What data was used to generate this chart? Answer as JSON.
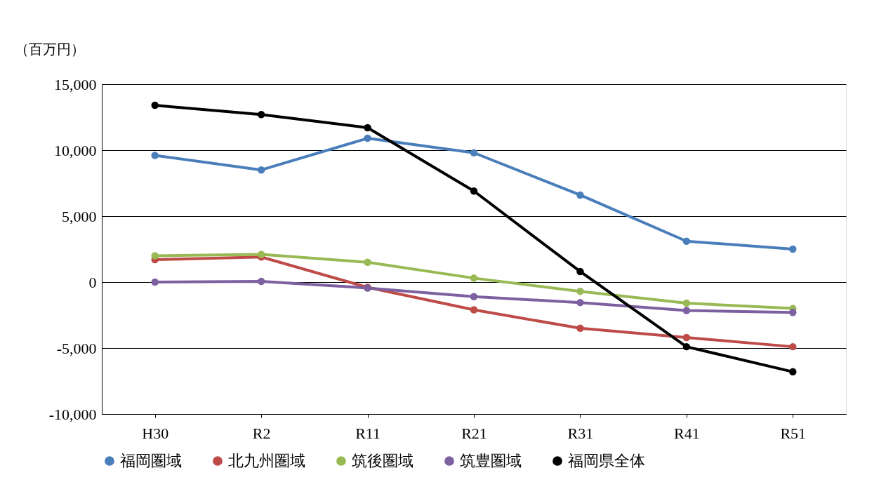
{
  "chart_data": {
    "type": "line",
    "ylabel": "（百万円）",
    "categories": [
      "H30",
      "R2",
      "R11",
      "R21",
      "R31",
      "R41",
      "R51"
    ],
    "series": [
      {
        "name": "福岡圏域",
        "color": "#4a7ebb",
        "values": [
          9600,
          8500,
          10900,
          9800,
          6600,
          3100,
          2500
        ]
      },
      {
        "name": "北九州圏域",
        "color": "#be4b48",
        "values": [
          1700,
          1900,
          -400,
          -2100,
          -3500,
          -4200,
          -4900
        ]
      },
      {
        "name": "筑後圏域",
        "color": "#98b954",
        "values": [
          2000,
          2100,
          1500,
          300,
          -700,
          -1600,
          -2000
        ]
      },
      {
        "name": "筑豊圏域",
        "color": "#7d60a0",
        "values": [
          0,
          50,
          -450,
          -1100,
          -1550,
          -2150,
          -2300
        ]
      },
      {
        "name": "福岡県全体",
        "color": "#000000",
        "values": [
          13400,
          12700,
          11700,
          6900,
          800,
          -4900,
          -6800
        ]
      }
    ],
    "ylim": [
      -10000,
      15000
    ],
    "yticks": [
      {
        "value": -10000,
        "label": "-10,000"
      },
      {
        "value": -5000,
        "label": "-5,000"
      },
      {
        "value": 0,
        "label": "0"
      },
      {
        "value": 5000,
        "label": "5,000"
      },
      {
        "value": 10000,
        "label": "10,000"
      },
      {
        "value": 15000,
        "label": "15,000"
      }
    ],
    "grid": "y",
    "legend": "bottom",
    "marker": "circle",
    "line_style": "solid"
  }
}
